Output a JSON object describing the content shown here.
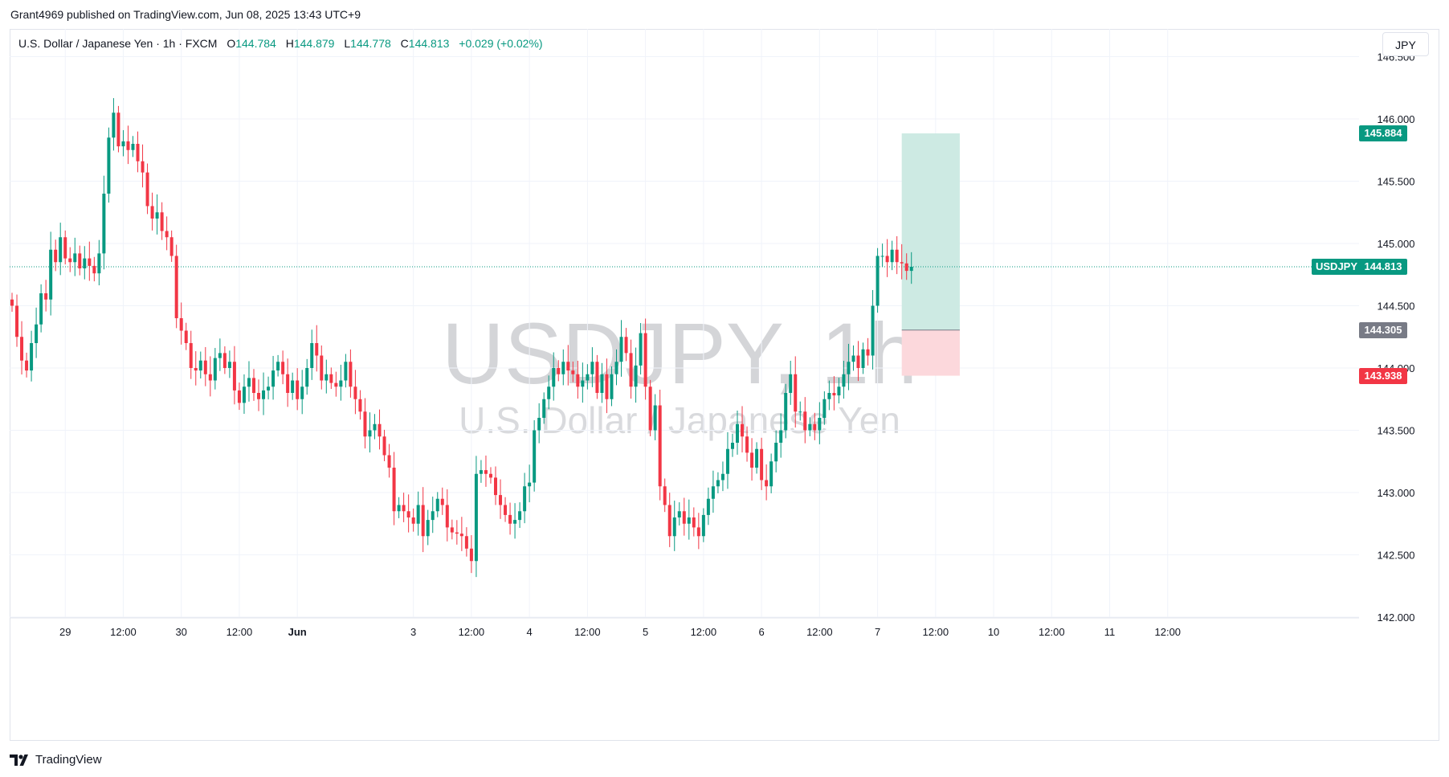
{
  "header": {
    "published_by": "Grant4969 published on TradingView.com, Jun 08, 2025 13:43 UTC+9"
  },
  "legend": {
    "instrument": "U.S. Dollar / Japanese Yen · 1h · FXCM",
    "open_label": "O",
    "open": "144.784",
    "high_label": "H",
    "high": "144.879",
    "low_label": "L",
    "low": "144.778",
    "close_label": "C",
    "close": "144.813",
    "change": "+0.029 (+0.02%)"
  },
  "currency_button": "JPY",
  "watermark": {
    "symbol": "USDJPY, 1h",
    "description": "U.S. Dollar / Japanese Yen"
  },
  "price_tags": {
    "target": "145.884",
    "current_symbol": "USDJPY",
    "current": "144.813",
    "entry": "144.305",
    "stop": "143.938"
  },
  "footer": {
    "brand": "TradingView"
  },
  "colors": {
    "up": "#089981",
    "down": "#f23645",
    "grid": "#f0f3fa",
    "profit_zone": "#cdeae3",
    "loss_zone": "#fcd8dc",
    "entry_tag": "#787b86"
  },
  "chart_data": {
    "type": "candlestick",
    "symbol": "USDJPY",
    "interval": "1h",
    "y_axis": {
      "min": 142.0,
      "max": 146.5,
      "ticks": [
        "146.500",
        "146.000",
        "145.500",
        "145.000",
        "144.500",
        "144.000",
        "143.500",
        "143.000",
        "142.500",
        "142.000"
      ],
      "tick_values": [
        146.5,
        146.0,
        145.5,
        145.0,
        144.5,
        144.0,
        143.5,
        143.0,
        142.5,
        142.0
      ]
    },
    "x_axis": {
      "labels": [
        "29",
        "12:00",
        "30",
        "12:00",
        "Jun",
        "3",
        "12:00",
        "4",
        "12:00",
        "5",
        "12:00",
        "6",
        "12:00",
        "7",
        "12:00",
        "10",
        "12:00",
        "11",
        "12:00"
      ],
      "label_bar_index": [
        11,
        23,
        35,
        47,
        59,
        83,
        95,
        107,
        119,
        131,
        143,
        155,
        167,
        179,
        191,
        203,
        215,
        227,
        239
      ],
      "bold": [
        false,
        false,
        false,
        false,
        true,
        false,
        false,
        false,
        false,
        false,
        false,
        false,
        false,
        false,
        false,
        false,
        false,
        false,
        false
      ]
    },
    "grid": true,
    "current_price": 144.813,
    "position": {
      "type": "long",
      "target": 145.884,
      "entry": 144.305,
      "stop": 143.938,
      "start_bar": 184,
      "end_bar": 196
    },
    "closes": [
      144.5,
      144.25,
      144.06,
      143.98,
      144.2,
      144.35,
      144.6,
      144.55,
      144.95,
      144.85,
      145.05,
      144.88,
      144.85,
      144.92,
      144.8,
      144.88,
      144.82,
      144.76,
      144.92,
      145.4,
      145.85,
      146.05,
      145.78,
      145.82,
      145.75,
      145.8,
      145.66,
      145.57,
      145.3,
      145.2,
      145.25,
      145.1,
      145.05,
      144.9,
      144.4,
      144.3,
      144.2,
      144.0,
      143.98,
      144.06,
      143.95,
      143.9,
      144.08,
      144.12,
      144.0,
      144.05,
      143.82,
      143.72,
      143.85,
      143.92,
      143.8,
      143.75,
      143.82,
      143.85,
      143.98,
      144.05,
      143.95,
      143.8,
      143.9,
      143.75,
      143.85,
      144.0,
      144.2,
      144.1,
      143.9,
      143.95,
      143.88,
      143.85,
      143.9,
      144.05,
      143.85,
      143.75,
      143.65,
      143.45,
      143.5,
      143.55,
      143.45,
      143.3,
      143.2,
      142.85,
      142.9,
      142.85,
      142.8,
      142.75,
      142.9,
      142.65,
      142.78,
      142.85,
      142.95,
      142.9,
      142.72,
      142.68,
      142.67,
      142.65,
      142.55,
      142.45,
      143.15,
      143.18,
      143.15,
      143.12,
      142.98,
      142.9,
      142.82,
      142.75,
      142.78,
      142.85,
      143.05,
      143.08,
      143.5,
      143.6,
      143.75,
      143.85,
      144.0,
      143.95,
      144.05,
      143.98,
      143.95,
      143.85,
      143.9,
      143.95,
      144.05,
      143.8,
      143.95,
      143.75,
      143.95,
      144.05,
      144.25,
      144.12,
      143.85,
      144.02,
      144.28,
      143.85,
      143.5,
      143.7,
      143.05,
      142.9,
      142.65,
      142.8,
      142.85,
      142.75,
      142.8,
      142.72,
      142.65,
      142.82,
      142.95,
      143.05,
      143.1,
      143.15,
      143.35,
      143.4,
      143.55,
      143.45,
      143.32,
      143.2,
      143.35,
      143.1,
      143.05,
      143.25,
      143.4,
      143.5,
      143.8,
      143.95,
      143.65,
      143.65,
      143.5,
      143.55,
      143.5,
      143.6,
      143.75,
      143.8,
      143.78,
      143.85,
      143.95,
      144.05,
      144.1,
      144.0,
      144.15,
      144.1,
      144.5,
      144.9,
      144.9,
      144.85,
      144.95,
      144.85,
      144.84,
      144.78,
      144.813
    ]
  }
}
